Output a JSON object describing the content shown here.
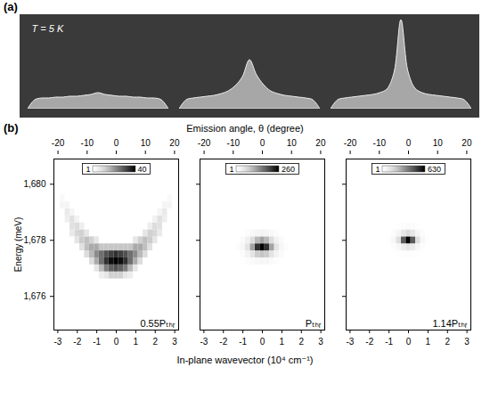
{
  "chart_data": [
    {
      "type": "area",
      "panel": "(a)",
      "annotation": "T = 5 K",
      "color": "#bbbbbb",
      "tick_labels": false,
      "xlim": [
        -10,
        10
      ],
      "ylim": [
        0,
        100
      ],
      "x": [
        -10,
        -9,
        -8,
        -7,
        -6,
        -5,
        -4,
        -3,
        -2,
        -1,
        0,
        1,
        2,
        3,
        4,
        5,
        6,
        7,
        8,
        9,
        10
      ],
      "values": [
        0,
        10,
        12,
        12,
        13,
        13,
        14,
        14,
        15,
        16,
        18,
        16,
        15,
        14,
        14,
        13,
        13,
        12,
        12,
        10,
        0
      ]
    },
    {
      "type": "area",
      "color": "#bbbbbb",
      "tick_labels": false,
      "xlim": [
        -10,
        10
      ],
      "ylim": [
        0,
        100
      ],
      "x": [
        -10,
        -9,
        -8,
        -7,
        -6,
        -5,
        -4,
        -3,
        -2,
        -1,
        0,
        1,
        2,
        3,
        4,
        5,
        6,
        7,
        8,
        9,
        10
      ],
      "values": [
        0,
        10,
        12,
        13,
        14,
        15,
        17,
        20,
        26,
        36,
        55,
        38,
        27,
        20,
        17,
        15,
        14,
        13,
        12,
        10,
        0
      ]
    },
    {
      "type": "area",
      "color": "#bbbbbb",
      "tick_labels": false,
      "xlim": [
        -10,
        10
      ],
      "ylim": [
        0,
        100
      ],
      "x": [
        -10,
        -9,
        -8,
        -7,
        -6,
        -5,
        -4,
        -3,
        -2,
        -1,
        0,
        1,
        2,
        3,
        4,
        5,
        6,
        7,
        8,
        9,
        10
      ],
      "values": [
        0,
        10,
        12,
        13,
        14,
        15,
        16,
        18,
        22,
        40,
        100,
        42,
        23,
        18,
        16,
        15,
        14,
        13,
        12,
        10,
        0
      ]
    },
    {
      "type": "heatmap",
      "panel": "(b)",
      "title": "0.55Pₜₕᵣ",
      "color": "Greys",
      "xlabel": "In-plane wavevector (10⁴ cm⁻¹)",
      "x2label": "Emission angle, θ (degree)",
      "ylabel": "Energy (meV)",
      "xlim": [
        -3.2,
        3.2
      ],
      "xticks": [
        -3,
        -2,
        -1,
        0,
        1,
        2,
        3
      ],
      "x2lim": [
        -21.4,
        21.4
      ],
      "x2ticks": [
        -20,
        -10,
        0,
        10,
        20
      ],
      "ylim": [
        1674.8,
        1680.9
      ],
      "yticks": [
        {
          "value": 1676,
          "label": "1,676"
        },
        {
          "value": 1678,
          "label": "1,678"
        },
        {
          "value": 1680,
          "label": "1,680"
        }
      ],
      "colorbar": {
        "range": [
          1,
          40
        ],
        "ticks": [
          1,
          40
        ]
      },
      "cells": [
        [
          0,
          1676.75,
          12
        ],
        [
          0,
          1677,
          30
        ],
        [
          0,
          1677.25,
          40
        ],
        [
          0,
          1677.5,
          34
        ],
        [
          0,
          1677.75,
          14
        ],
        [
          0.25,
          1676.75,
          12
        ],
        [
          0.25,
          1677,
          28
        ],
        [
          0.25,
          1677.25,
          38
        ],
        [
          0.25,
          1677.5,
          32
        ],
        [
          0.25,
          1677.75,
          14
        ],
        [
          -0.25,
          1676.75,
          12
        ],
        [
          -0.25,
          1677,
          28
        ],
        [
          -0.25,
          1677.25,
          38
        ],
        [
          -0.25,
          1677.5,
          32
        ],
        [
          -0.25,
          1677.75,
          14
        ],
        [
          0.5,
          1676.75,
          8
        ],
        [
          0.5,
          1677,
          24
        ],
        [
          0.5,
          1677.25,
          34
        ],
        [
          0.5,
          1677.5,
          30
        ],
        [
          0.5,
          1677.75,
          14
        ],
        [
          -0.5,
          1676.75,
          8
        ],
        [
          -0.5,
          1677,
          24
        ],
        [
          -0.5,
          1677.25,
          34
        ],
        [
          -0.5,
          1677.5,
          30
        ],
        [
          -0.5,
          1677.75,
          14
        ],
        [
          0.75,
          1676.75,
          6
        ],
        [
          0.75,
          1677,
          16
        ],
        [
          0.75,
          1677.25,
          26
        ],
        [
          0.75,
          1677.5,
          26
        ],
        [
          0.75,
          1677.75,
          14
        ],
        [
          -0.75,
          1676.75,
          6
        ],
        [
          -0.75,
          1677,
          16
        ],
        [
          -0.75,
          1677.25,
          26
        ],
        [
          -0.75,
          1677.5,
          26
        ],
        [
          -0.75,
          1677.75,
          14
        ],
        [
          1,
          1677,
          8
        ],
        [
          1,
          1677.25,
          18
        ],
        [
          1,
          1677.5,
          22
        ],
        [
          1,
          1677.75,
          18
        ],
        [
          1,
          1678,
          8
        ],
        [
          -1,
          1677,
          8
        ],
        [
          -1,
          1677.25,
          18
        ],
        [
          -1,
          1677.5,
          22
        ],
        [
          -1,
          1677.75,
          18
        ],
        [
          -1,
          1678,
          8
        ],
        [
          1.25,
          1677.25,
          10
        ],
        [
          1.25,
          1677.5,
          16
        ],
        [
          1.25,
          1677.75,
          18
        ],
        [
          1.25,
          1678,
          12
        ],
        [
          -1.25,
          1677.25,
          10
        ],
        [
          -1.25,
          1677.5,
          16
        ],
        [
          -1.25,
          1677.75,
          18
        ],
        [
          -1.25,
          1678,
          12
        ],
        [
          1.5,
          1677.5,
          10
        ],
        [
          1.5,
          1677.75,
          15
        ],
        [
          1.5,
          1678,
          15
        ],
        [
          1.5,
          1678.25,
          8
        ],
        [
          -1.5,
          1677.5,
          10
        ],
        [
          -1.5,
          1677.75,
          15
        ],
        [
          -1.5,
          1678,
          15
        ],
        [
          -1.5,
          1678.25,
          8
        ],
        [
          1.75,
          1677.75,
          9
        ],
        [
          1.75,
          1678,
          13
        ],
        [
          1.75,
          1678.25,
          12
        ],
        [
          1.75,
          1678.5,
          6
        ],
        [
          -1.75,
          1677.75,
          9
        ],
        [
          -1.75,
          1678,
          13
        ],
        [
          -1.75,
          1678.25,
          12
        ],
        [
          -1.75,
          1678.5,
          6
        ],
        [
          2,
          1678,
          8
        ],
        [
          2,
          1678.25,
          11
        ],
        [
          2,
          1678.5,
          10
        ],
        [
          2,
          1678.75,
          5
        ],
        [
          -2,
          1678,
          8
        ],
        [
          -2,
          1678.25,
          11
        ],
        [
          -2,
          1678.5,
          10
        ],
        [
          -2,
          1678.75,
          5
        ],
        [
          2.25,
          1678.25,
          7
        ],
        [
          2.25,
          1678.5,
          9
        ],
        [
          2.25,
          1678.75,
          9
        ],
        [
          2.25,
          1679,
          4
        ],
        [
          -2.25,
          1678.25,
          7
        ],
        [
          -2.25,
          1678.5,
          9
        ],
        [
          -2.25,
          1678.75,
          9
        ],
        [
          -2.25,
          1679,
          4
        ],
        [
          2.5,
          1678.75,
          6
        ],
        [
          2.5,
          1679,
          7
        ],
        [
          2.5,
          1679.25,
          4
        ],
        [
          -2.5,
          1678.75,
          6
        ],
        [
          -2.5,
          1679,
          7
        ],
        [
          -2.5,
          1679.25,
          4
        ],
        [
          2.75,
          1679.25,
          4
        ],
        [
          2.75,
          1679.5,
          3
        ],
        [
          -2.75,
          1679.25,
          4
        ],
        [
          -2.75,
          1679.5,
          3
        ]
      ]
    },
    {
      "type": "heatmap",
      "title": "Pₜₕᵣ",
      "color": "Greys",
      "tick_labels": "x",
      "xlim": [
        -3.2,
        3.2
      ],
      "xticks": [
        -3,
        -2,
        -1,
        0,
        1,
        2,
        3
      ],
      "x2lim": [
        -21.4,
        21.4
      ],
      "x2ticks": [
        -20,
        -10,
        0,
        10,
        20
      ],
      "ylim": [
        1674.8,
        1680.9
      ],
      "yticks": [
        {
          "value": 1676,
          "label": "1,676"
        },
        {
          "value": 1678,
          "label": "1,678"
        },
        {
          "value": 1680,
          "label": "1,680"
        }
      ],
      "colorbar": {
        "range": [
          1,
          260
        ],
        "ticks": [
          1,
          260
        ]
      },
      "cells": [
        [
          0,
          1677.25,
          20
        ],
        [
          0,
          1677.5,
          90
        ],
        [
          0,
          1677.75,
          260
        ],
        [
          0,
          1678,
          120
        ],
        [
          0,
          1678.25,
          25
        ],
        [
          0.25,
          1677.25,
          18
        ],
        [
          0.25,
          1677.5,
          80
        ],
        [
          0.25,
          1677.75,
          220
        ],
        [
          0.25,
          1678,
          100
        ],
        [
          0.25,
          1678.25,
          22
        ],
        [
          -0.25,
          1677.25,
          18
        ],
        [
          -0.25,
          1677.5,
          80
        ],
        [
          -0.25,
          1677.75,
          220
        ],
        [
          -0.25,
          1678,
          100
        ],
        [
          -0.25,
          1678.25,
          22
        ],
        [
          0.5,
          1677.25,
          12
        ],
        [
          0.5,
          1677.5,
          50
        ],
        [
          0.5,
          1677.75,
          120
        ],
        [
          0.5,
          1678,
          60
        ],
        [
          0.5,
          1678.25,
          15
        ],
        [
          -0.5,
          1677.25,
          12
        ],
        [
          -0.5,
          1677.5,
          50
        ],
        [
          -0.5,
          1677.75,
          120
        ],
        [
          -0.5,
          1678,
          60
        ],
        [
          -0.5,
          1678.25,
          15
        ],
        [
          0.75,
          1677.25,
          8
        ],
        [
          0.75,
          1677.5,
          25
        ],
        [
          0.75,
          1677.75,
          50
        ],
        [
          0.75,
          1678,
          30
        ],
        [
          0.75,
          1678.25,
          8
        ],
        [
          -0.75,
          1677.25,
          8
        ],
        [
          -0.75,
          1677.5,
          25
        ],
        [
          -0.75,
          1677.75,
          50
        ],
        [
          -0.75,
          1678,
          30
        ],
        [
          -0.75,
          1678.25,
          8
        ],
        [
          1,
          1677.5,
          10
        ],
        [
          1,
          1677.75,
          20
        ],
        [
          1,
          1678,
          12
        ],
        [
          -1,
          1677.5,
          10
        ],
        [
          -1,
          1677.75,
          20
        ],
        [
          -1,
          1678,
          12
        ],
        [
          1.25,
          1677.75,
          8
        ],
        [
          -1.25,
          1677.75,
          8
        ]
      ]
    },
    {
      "type": "heatmap",
      "title": "1.14Pₜₕᵣ",
      "color": "Greys",
      "tick_labels": "x",
      "xlim": [
        -3.2,
        3.2
      ],
      "xticks": [
        -3,
        -2,
        -1,
        0,
        1,
        2,
        3
      ],
      "x2lim": [
        -21.4,
        21.4
      ],
      "x2ticks": [
        -20,
        -10,
        0,
        10,
        20
      ],
      "ylim": [
        1674.8,
        1680.9
      ],
      "yticks": [
        {
          "value": 1676,
          "label": "1,676"
        },
        {
          "value": 1678,
          "label": "1,678"
        },
        {
          "value": 1680,
          "label": "1,680"
        }
      ],
      "colorbar": {
        "range": [
          1,
          630
        ],
        "ticks": [
          1,
          630
        ]
      },
      "cells": [
        [
          0,
          1677.5,
          15
        ],
        [
          0,
          1677.75,
          120
        ],
        [
          0,
          1678,
          630
        ],
        [
          0,
          1678.25,
          150
        ],
        [
          0,
          1678.5,
          20
        ],
        [
          0.25,
          1677.5,
          12
        ],
        [
          0.25,
          1677.75,
          90
        ],
        [
          0.25,
          1678,
          450
        ],
        [
          0.25,
          1678.25,
          110
        ],
        [
          0.25,
          1678.5,
          15
        ],
        [
          -0.25,
          1677.5,
          12
        ],
        [
          -0.25,
          1677.75,
          90
        ],
        [
          -0.25,
          1678,
          450
        ],
        [
          -0.25,
          1678.25,
          110
        ],
        [
          -0.25,
          1678.5,
          15
        ],
        [
          0.5,
          1677.5,
          6
        ],
        [
          0.5,
          1677.75,
          40
        ],
        [
          0.5,
          1678,
          140
        ],
        [
          0.5,
          1678.25,
          50
        ],
        [
          0.5,
          1678.5,
          8
        ],
        [
          -0.5,
          1677.5,
          6
        ],
        [
          -0.5,
          1677.75,
          40
        ],
        [
          -0.5,
          1678,
          140
        ],
        [
          -0.5,
          1678.25,
          50
        ],
        [
          -0.5,
          1678.5,
          8
        ],
        [
          0.75,
          1677.75,
          12
        ],
        [
          0.75,
          1678,
          40
        ],
        [
          0.75,
          1678.25,
          15
        ],
        [
          -0.75,
          1677.75,
          12
        ],
        [
          -0.75,
          1678,
          40
        ],
        [
          -0.75,
          1678.25,
          15
        ],
        [
          1,
          1678,
          10
        ],
        [
          -1,
          1678,
          10
        ]
      ]
    }
  ]
}
